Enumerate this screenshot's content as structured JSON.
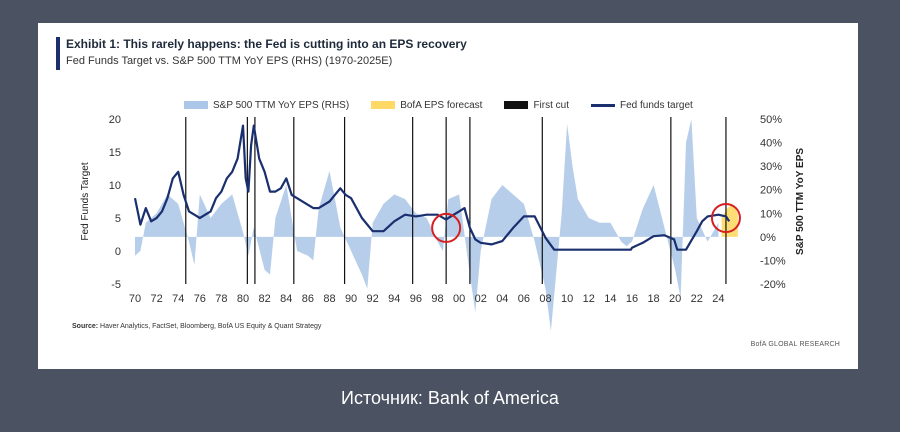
{
  "exhibit": {
    "title": "Exhibit 1: This rarely happens: the Fed is cutting into an EPS recovery",
    "subtitle": "Fed Funds Target vs. S&P 500 TTM YoY EPS (RHS) (1970-2025E)",
    "source_label": "Source:",
    "source_text": " Haver Analytics, FactSet, Bloomberg, BofA US Equity & Quant Strategy",
    "brand": "BofA GLOBAL RESEARCH"
  },
  "caption": "Источник: Bank of America",
  "chart_data": {
    "type": "line",
    "title": "Exhibit 1: This rarely happens: the Fed is cutting into an EPS recovery",
    "subtitle": "Fed Funds Target vs. S&P 500 TTM YoY EPS (RHS) (1970-2025E)",
    "ylabel_left": "Fed Funds Target",
    "ylabel_right": "S&P 500 TTM YoY EPS",
    "xlim": [
      1970,
      2026
    ],
    "ylim_left": [
      -5,
      20
    ],
    "ylim_right": [
      -20,
      50
    ],
    "x_tick_labels": [
      "70",
      "72",
      "74",
      "76",
      "78",
      "80",
      "82",
      "84",
      "86",
      "88",
      "90",
      "92",
      "94",
      "96",
      "98",
      "00",
      "02",
      "04",
      "06",
      "08",
      "10",
      "12",
      "14",
      "16",
      "18",
      "20",
      "22",
      "24"
    ],
    "y_left_ticks": [
      "20",
      "15",
      "10",
      "5",
      "0",
      "-5"
    ],
    "y_right_ticks": [
      "50%",
      "40%",
      "30%",
      "20%",
      "10%",
      "0%",
      "-10%",
      "-20%"
    ],
    "legend_position": "top",
    "series": [
      {
        "name": "S&P 500 TTM YoY EPS (RHS)",
        "kind": "area",
        "color": "#aac6e8",
        "x": [
          1970,
          1970.5,
          1971,
          1972,
          1973,
          1974,
          1975,
          1975.5,
          1976,
          1977,
          1978,
          1979,
          1980,
          1980.5,
          1981,
          1982,
          1982.5,
          1983,
          1984,
          1985,
          1986,
          1986.5,
          1987,
          1988,
          1989,
          1990,
          1991,
          1991.5,
          1992,
          1993,
          1994,
          1995,
          1996,
          1997,
          1998,
          1998.5,
          1999,
          2000,
          2001,
          2001.5,
          2002,
          2003,
          2004,
          2005,
          2006,
          2007,
          2008,
          2008.5,
          2009,
          2009.5,
          2010,
          2010.5,
          2011,
          2012,
          2013,
          2014,
          2015,
          2015.5,
          2016,
          2017,
          2018,
          2019,
          2020,
          2020.5,
          2021,
          2021.5,
          2022,
          2023,
          2024
        ],
        "values": [
          -8,
          -6,
          6,
          10,
          18,
          14,
          -2,
          -12,
          18,
          8,
          14,
          18,
          2,
          -8,
          4,
          -14,
          -16,
          8,
          22,
          -6,
          -8,
          -10,
          12,
          28,
          4,
          -6,
          -16,
          -22,
          6,
          14,
          18,
          16,
          10,
          8,
          -2,
          -6,
          16,
          18,
          -16,
          -32,
          -6,
          16,
          22,
          18,
          14,
          -2,
          -22,
          -40,
          -15,
          10,
          48,
          30,
          16,
          8,
          6,
          6,
          -2,
          -4,
          -2,
          12,
          22,
          4,
          -14,
          -26,
          40,
          50,
          8,
          -2,
          6
        ]
      },
      {
        "name": "BofA EPS forecast",
        "kind": "area",
        "color": "#ffd966",
        "x": [
          2024.3,
          2024.8,
          2025.3,
          2025.8
        ],
        "values": [
          8,
          12,
          14,
          10
        ]
      },
      {
        "name": "First cut",
        "kind": "vertical-lines",
        "color": "#111111",
        "x": [
          1974.7,
          1980.4,
          1981.1,
          1984.7,
          1989.4,
          1995.7,
          1998.8,
          2001,
          2007.7,
          2019.6,
          2024.7
        ]
      },
      {
        "name": "Fed funds target",
        "kind": "line",
        "color": "#1a2f6e",
        "x": [
          1970,
          1970.5,
          1971,
          1971.5,
          1972,
          1972.5,
          1973,
          1973.5,
          1974,
          1974.5,
          1975,
          1975.5,
          1976,
          1977,
          1977.5,
          1978,
          1978.5,
          1979,
          1979.5,
          1980,
          1980.25,
          1980.5,
          1980.75,
          1981,
          1981.5,
          1982,
          1982.5,
          1983,
          1983.5,
          1984,
          1984.5,
          1985,
          1986,
          1986.5,
          1987,
          1988,
          1989,
          1989.5,
          1990,
          1991,
          1992,
          1993,
          1994,
          1995,
          1996,
          1997,
          1998,
          1998.8,
          1999,
          2000,
          2000.5,
          2001,
          2001.5,
          2002,
          2003,
          2004,
          2005,
          2006,
          2007,
          2008,
          2008.8,
          2009,
          2015.9,
          2016,
          2017,
          2018,
          2019,
          2019.9,
          2020.2,
          2021,
          2022,
          2022.5,
          2023,
          2024,
          2024.7,
          2025
        ],
        "values": [
          8,
          4,
          6.5,
          4.5,
          5,
          6,
          8,
          11,
          12,
          8.5,
          6,
          5.5,
          5,
          6,
          8,
          9,
          11,
          12,
          14,
          19,
          11,
          9,
          16,
          19,
          14,
          12,
          9,
          9,
          9.5,
          11,
          8.5,
          8,
          7,
          6.5,
          6.5,
          7.5,
          9.5,
          8.5,
          8,
          5,
          3,
          3,
          4.5,
          5.5,
          5.25,
          5.5,
          5.5,
          4.75,
          5,
          6,
          6.5,
          3.5,
          1.75,
          1.25,
          1,
          1.5,
          3.5,
          5.25,
          5.25,
          2,
          0.2,
          0.2,
          0.2,
          0.5,
          1.25,
          2.25,
          2.4,
          1.75,
          0.2,
          0.2,
          3,
          4.5,
          5.25,
          5.5,
          5.25,
          4.5
        ]
      }
    ],
    "annotations": [
      {
        "kind": "red-circle",
        "x": 1998.8,
        "y_left": 3.5
      },
      {
        "kind": "red-circle",
        "x": 2024.7,
        "y_left": 5
      }
    ],
    "grid": false
  }
}
